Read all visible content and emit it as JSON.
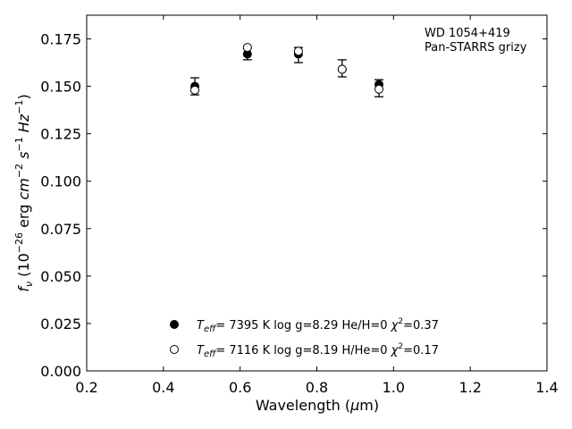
{
  "chart_data": {
    "type": "scatter",
    "xlabel": "Wavelength (μm)",
    "ylabel": "f_ν (10^-26 erg cm^-2 s^-1 Hz^-1)",
    "xlim": [
      0.2,
      1.4
    ],
    "ylim": [
      0.0,
      0.1875
    ],
    "xticks": [
      "0.2",
      "0.4",
      "0.6",
      "0.8",
      "1.0",
      "1.2",
      "1.4"
    ],
    "yticks": [
      "0.000",
      "0.025",
      "0.050",
      "0.075",
      "0.100",
      "0.125",
      "0.150",
      "0.175"
    ],
    "annotation": [
      "WD 1054+419",
      "Pan-STARRS grizy"
    ],
    "observed": {
      "x": [
        0.482,
        0.619,
        0.752,
        0.866,
        0.962
      ],
      "y": [
        0.15,
        0.167,
        0.1665,
        0.1595,
        0.149
      ],
      "err": [
        0.0045,
        0.003,
        0.004,
        0.0045,
        0.0045
      ]
    },
    "series": [
      {
        "marker": "filled-circle",
        "label": {
          "teff": "7395 K",
          "logg": "log g=8.29",
          "comp": "He/H=0",
          "chi": "=0.37"
        },
        "x": [
          0.482,
          0.619,
          0.752,
          0.866,
          0.962
        ],
        "y": [
          0.15,
          0.167,
          0.167,
          0.159,
          0.151
        ]
      },
      {
        "marker": "open-circle",
        "label": {
          "teff": "7116 K",
          "logg": "log g=8.19",
          "comp": "H/He=0",
          "chi": "=0.17"
        },
        "x": [
          0.482,
          0.619,
          0.752,
          0.866,
          0.962
        ],
        "y": [
          0.148,
          0.1705,
          0.1685,
          0.159,
          0.1485
        ]
      }
    ],
    "legend_position": "lower-center"
  }
}
